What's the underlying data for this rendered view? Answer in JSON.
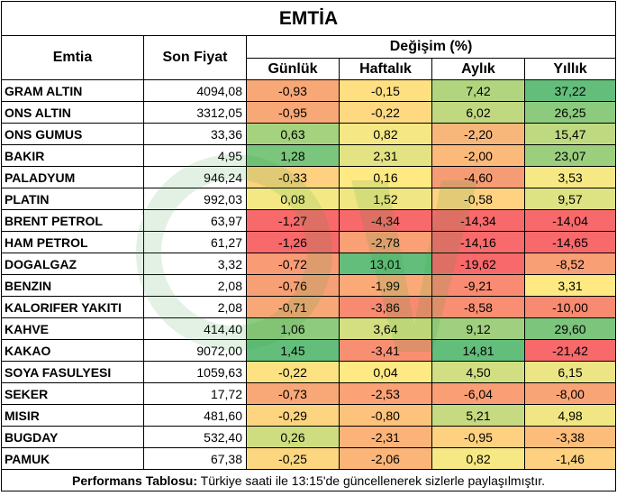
{
  "title": "EMTİA",
  "headers": {
    "commodity": "Emtia",
    "last_price": "Son Fiyat",
    "change": "Değişim (%)",
    "daily": "Günlük",
    "weekly": "Haftalık",
    "monthly": "Aylık",
    "yearly": "Yıllık"
  },
  "rows": [
    {
      "name": "GRAM ALTIN",
      "price": "4094,08",
      "daily": "-0,93",
      "weekly": "-0,15",
      "monthly": "7,42",
      "yearly": "37,22",
      "colors": [
        "#f8a776",
        "#fee083",
        "#b1d57f",
        "#63be7b"
      ]
    },
    {
      "name": "ONS ALTIN",
      "price": "3312,05",
      "daily": "-0,95",
      "weekly": "-0,22",
      "monthly": "6,02",
      "yearly": "26,25",
      "colors": [
        "#f8a776",
        "#fed981",
        "#c0d980",
        "#8ccb7e"
      ]
    },
    {
      "name": "ONS GUMUS",
      "price": "33,36",
      "daily": "0,63",
      "weekly": "0,82",
      "monthly": "-2,20",
      "yearly": "15,47",
      "colors": [
        "#a5d27f",
        "#f5e784",
        "#f8b77a",
        "#bfd980"
      ]
    },
    {
      "name": "BAKIR",
      "price": "4,95",
      "daily": "1,28",
      "weekly": "2,31",
      "monthly": "-2,00",
      "yearly": "23,07",
      "colors": [
        "#7bc67d",
        "#e3e383",
        "#fbb97a",
        "#9bcf7e"
      ]
    },
    {
      "name": "PALADYUM",
      "price": "946,24",
      "daily": "-0,33",
      "weekly": "0,16",
      "monthly": "-4,60",
      "yearly": "3,53",
      "colors": [
        "#fdd17f",
        "#fee983",
        "#f69c74",
        "#f6e884"
      ]
    },
    {
      "name": "PLATIN",
      "price": "992,03",
      "daily": "0,08",
      "weekly": "1,52",
      "monthly": "-0,58",
      "yearly": "9,57",
      "colors": [
        "#f3e884",
        "#f0e683",
        "#fed280",
        "#dde283"
      ]
    },
    {
      "name": "BRENT PETROL",
      "price": "63,97",
      "daily": "-1,27",
      "weekly": "-4,34",
      "monthly": "-14,34",
      "yearly": "-14,04",
      "colors": [
        "#f8696b",
        "#f8696b",
        "#f8696b",
        "#f8696b"
      ]
    },
    {
      "name": "HAM PETROL",
      "price": "61,27",
      "daily": "-1,26",
      "weekly": "-2,78",
      "monthly": "-14,16",
      "yearly": "-14,65",
      "colors": [
        "#f8696b",
        "#f9a075",
        "#f86a6b",
        "#f8696b"
      ]
    },
    {
      "name": "DOGALGAZ",
      "price": "3,32",
      "daily": "-0,72",
      "weekly": "13,01",
      "monthly": "-19,62",
      "yearly": "-8,52",
      "colors": [
        "#f99b75",
        "#63be7b",
        "#f8696b",
        "#f99f75"
      ]
    },
    {
      "name": "BENZIN",
      "price": "2,08",
      "daily": "-0,76",
      "weekly": "-1,99",
      "monthly": "-9,21",
      "yearly": "3,31",
      "colors": [
        "#f8a075",
        "#fbaa77",
        "#f88b71",
        "#fee983"
      ]
    },
    {
      "name": "KALORIFER YAKITI",
      "price": "2,08",
      "daily": "-0,71",
      "weekly": "-3,86",
      "monthly": "-8,58",
      "yearly": "-10,00",
      "colors": [
        "#f8a776",
        "#f88a71",
        "#f98e72",
        "#f88a71"
      ]
    },
    {
      "name": "KAHVE",
      "price": "414,40",
      "daily": "1,06",
      "weekly": "3,64",
      "monthly": "9,12",
      "yearly": "29,60",
      "colors": [
        "#8fcb7e",
        "#d4df82",
        "#a0d07f",
        "#7bc57d"
      ]
    },
    {
      "name": "KAKAO",
      "price": "9072,00",
      "daily": "1,45",
      "weekly": "-3,41",
      "monthly": "14,81",
      "yearly": "-21,42",
      "colors": [
        "#63be7b",
        "#f98f72",
        "#63be7b",
        "#f8696b"
      ]
    },
    {
      "name": "SOYA FASULYESI",
      "price": "1059,63",
      "daily": "-0,22",
      "weekly": "0,04",
      "monthly": "4,50",
      "yearly": "6,15",
      "colors": [
        "#fde282",
        "#fee983",
        "#d1df82",
        "#ece584"
      ]
    },
    {
      "name": "SEKER",
      "price": "17,72",
      "daily": "-0,73",
      "weekly": "-2,53",
      "monthly": "-6,04",
      "yearly": "-8,00",
      "colors": [
        "#f8a776",
        "#fba276",
        "#fa9e75",
        "#f9a476"
      ]
    },
    {
      "name": "MISIR",
      "price": "481,60",
      "daily": "-0,29",
      "weekly": "-0,80",
      "monthly": "5,21",
      "yearly": "4,98",
      "colors": [
        "#fdd580",
        "#fdc27c",
        "#c5da81",
        "#f0e784"
      ]
    },
    {
      "name": "BUGDAY",
      "price": "532,40",
      "daily": "0,26",
      "weekly": "-2,31",
      "monthly": "-0,95",
      "yearly": "-3,38",
      "colors": [
        "#cfdd81",
        "#fbb379",
        "#fdd17f",
        "#fcbd7b"
      ]
    },
    {
      "name": "PAMUK",
      "price": "67,38",
      "daily": "-0,25",
      "weekly": "-2,06",
      "monthly": "0,82",
      "yearly": "-1,46",
      "colors": [
        "#fdd780",
        "#fbb579",
        "#f6e884",
        "#fdd17f"
      ]
    }
  ],
  "footer": {
    "label": "Performans Tablosu:",
    "text": " Türkiye saati ile 13:15'de güncellenerek sizlerle paylaşılmıştır."
  }
}
